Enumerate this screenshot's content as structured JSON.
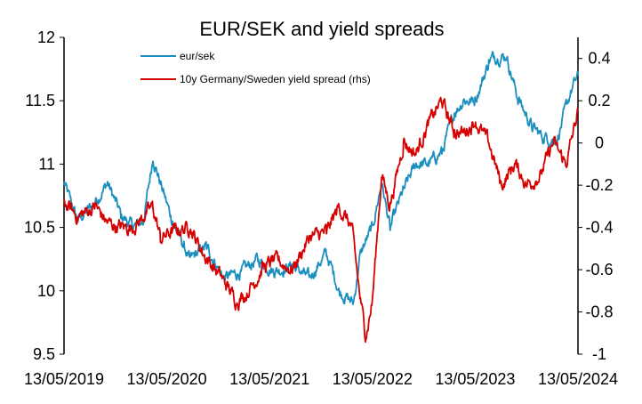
{
  "chart_data": {
    "type": "line",
    "title": "EUR/SEK and yield spreads",
    "xlabel": "",
    "ylabel": "",
    "x_ticks": [
      "13/05/2019",
      "13/05/2020",
      "13/05/2021",
      "13/05/2022",
      "13/05/2023",
      "13/05/2024"
    ],
    "x_range": [
      "2019-05-13",
      "2024-05-13"
    ],
    "ylim": [
      9.5,
      12
    ],
    "y_ticks": [
      "9.5",
      "10",
      "10.5",
      "11",
      "11.5",
      "12"
    ],
    "y2lim": [
      -1,
      0.5
    ],
    "y2_ticks": [
      "-1",
      "-0.8",
      "-0.6",
      "-0.4",
      "-0.2",
      "0",
      "0.2",
      "0.4"
    ],
    "grid": false,
    "legend_position": "top-left",
    "series": [
      {
        "name": "eur/sek",
        "axis": "left",
        "color": "#1a8fbf",
        "x": [
          "2019-05-13",
          "2019-07-01",
          "2019-09-01",
          "2019-10-15",
          "2019-12-01",
          "2020-01-15",
          "2020-02-20",
          "2020-03-24",
          "2020-04-20",
          "2020-06-01",
          "2020-08-01",
          "2020-10-01",
          "2020-12-01",
          "2021-02-01",
          "2021-04-01",
          "2021-06-01",
          "2021-08-01",
          "2021-10-01",
          "2021-12-01",
          "2022-01-15",
          "2022-03-07",
          "2022-04-01",
          "2022-05-13",
          "2022-06-15",
          "2022-07-15",
          "2022-09-01",
          "2022-10-15",
          "2022-12-01",
          "2023-01-15",
          "2023-03-01",
          "2023-04-01",
          "2023-05-13",
          "2023-07-01",
          "2023-07-20",
          "2023-09-01",
          "2023-10-15",
          "2023-12-01",
          "2024-01-15",
          "2024-03-01",
          "2024-04-15",
          "2024-05-13"
        ],
        "values": [
          10.85,
          10.55,
          10.7,
          10.85,
          10.6,
          10.5,
          10.55,
          11.05,
          10.85,
          10.55,
          10.25,
          10.35,
          10.1,
          10.15,
          10.25,
          10.15,
          10.2,
          10.1,
          10.3,
          10.0,
          9.9,
          10.3,
          10.5,
          10.85,
          10.5,
          10.8,
          11.0,
          11.0,
          11.1,
          11.4,
          11.5,
          11.5,
          11.8,
          11.85,
          11.85,
          11.5,
          11.3,
          11.2,
          11.2,
          11.55,
          11.7
        ]
      },
      {
        "name": "10y Germany/Sweden yield spread (rhs)",
        "axis": "right",
        "color": "#d60000",
        "x": [
          "2019-05-13",
          "2019-07-01",
          "2019-09-01",
          "2019-10-15",
          "2019-12-01",
          "2020-01-15",
          "2020-02-20",
          "2020-03-24",
          "2020-04-20",
          "2020-06-01",
          "2020-08-01",
          "2020-10-01",
          "2020-12-01",
          "2021-01-15",
          "2021-03-01",
          "2021-04-15",
          "2021-06-01",
          "2021-08-01",
          "2021-10-01",
          "2021-12-01",
          "2022-01-15",
          "2022-03-01",
          "2022-04-01",
          "2022-04-20",
          "2022-05-13",
          "2022-06-15",
          "2022-07-15",
          "2022-09-01",
          "2022-10-15",
          "2022-12-01",
          "2023-01-15",
          "2023-03-01",
          "2023-04-01",
          "2023-05-13",
          "2023-07-01",
          "2023-08-15",
          "2023-10-01",
          "2023-11-15",
          "2024-01-01",
          "2024-02-15",
          "2024-04-01",
          "2024-05-13"
        ],
        "values": [
          -0.28,
          -0.35,
          -0.3,
          -0.38,
          -0.4,
          -0.4,
          -0.35,
          -0.3,
          -0.45,
          -0.42,
          -0.4,
          -0.55,
          -0.65,
          -0.75,
          -0.7,
          -0.6,
          -0.55,
          -0.6,
          -0.45,
          -0.42,
          -0.3,
          -0.4,
          -0.75,
          -0.92,
          -0.75,
          -0.15,
          -0.3,
          0.0,
          -0.05,
          0.1,
          0.2,
          0.05,
          0.05,
          0.1,
          0.0,
          -0.2,
          -0.1,
          -0.2,
          -0.15,
          0.0,
          -0.1,
          0.15
        ]
      }
    ]
  }
}
